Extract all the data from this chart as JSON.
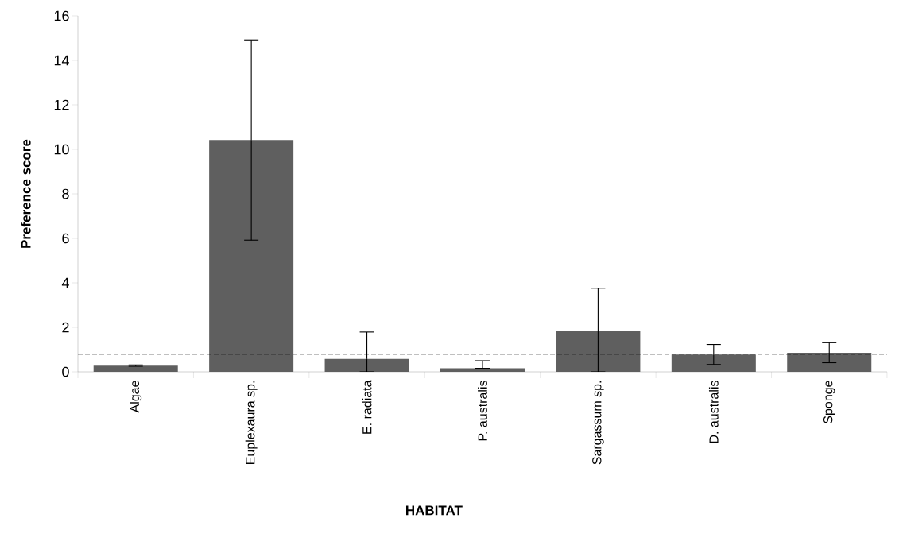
{
  "chart_data": {
    "type": "bar",
    "categories": [
      "Algae",
      "Euplexaura sp.",
      "E. radiata",
      "P. australis",
      "Sargassum sp.",
      "D. australis",
      "Sponge"
    ],
    "values": [
      0.28,
      10.42,
      0.58,
      0.16,
      1.83,
      0.78,
      0.86
    ],
    "errors": [
      0.03,
      4.5,
      [
        0,
        1.79
      ],
      [
        0.16,
        0.5
      ],
      [
        0,
        3.76
      ],
      0.45,
      0.45
    ],
    "color": "#5f5f5f",
    "xlabel": "HABITAT",
    "ylabel": "Preference score",
    "ylim": [
      0,
      16
    ],
    "yticks": [
      0,
      2,
      4,
      6,
      8,
      10,
      12,
      14,
      16
    ],
    "ref_lines": [
      {
        "axis": "y",
        "value": 0.8,
        "line_style": "dashed",
        "color": "#000000"
      }
    ],
    "grid": false
  }
}
